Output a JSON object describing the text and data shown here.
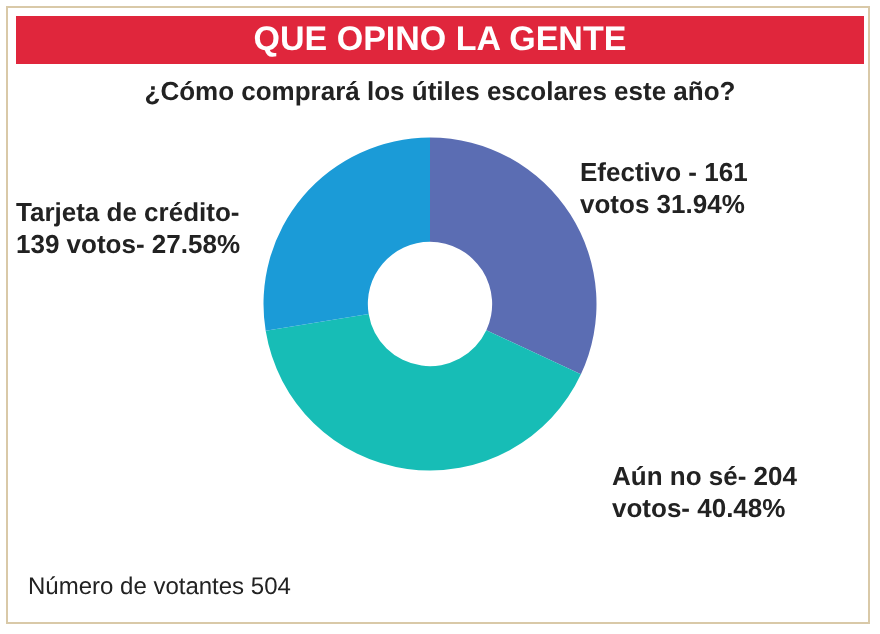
{
  "chart_data": {
    "type": "donut",
    "title": "QUE OPINO LA GENTE",
    "subtitle": "¿Cómo comprará los útiles escolares este año?",
    "categories": [
      "Efectivo -",
      "Aún no sé-",
      "Tarjeta de crédito-"
    ],
    "value_labels": [
      "161 votos 31.94%",
      "204 votos- 40.48%",
      "139 votos- 27.58%"
    ],
    "values": [
      161,
      204,
      139
    ],
    "colors": [
      "#5b6db3",
      "#17bdb6",
      "#1b9bd7"
    ],
    "annotations": [
      "Número de votantes 504"
    ]
  }
}
